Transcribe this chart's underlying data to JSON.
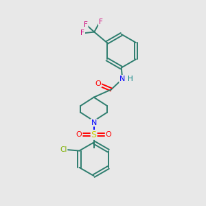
{
  "bg_color": "#e8e8e8",
  "bond_color": "#2d7d6e",
  "N_color": "#0000ff",
  "O_color": "#ff0000",
  "S_color": "#cccc00",
  "Cl_color": "#7db000",
  "F_color": "#cc0077",
  "H_color": "#008080",
  "figsize": [
    3.0,
    3.0
  ],
  "dpi": 100,
  "xlim": [
    0,
    10
  ],
  "ylim": [
    0,
    10
  ]
}
